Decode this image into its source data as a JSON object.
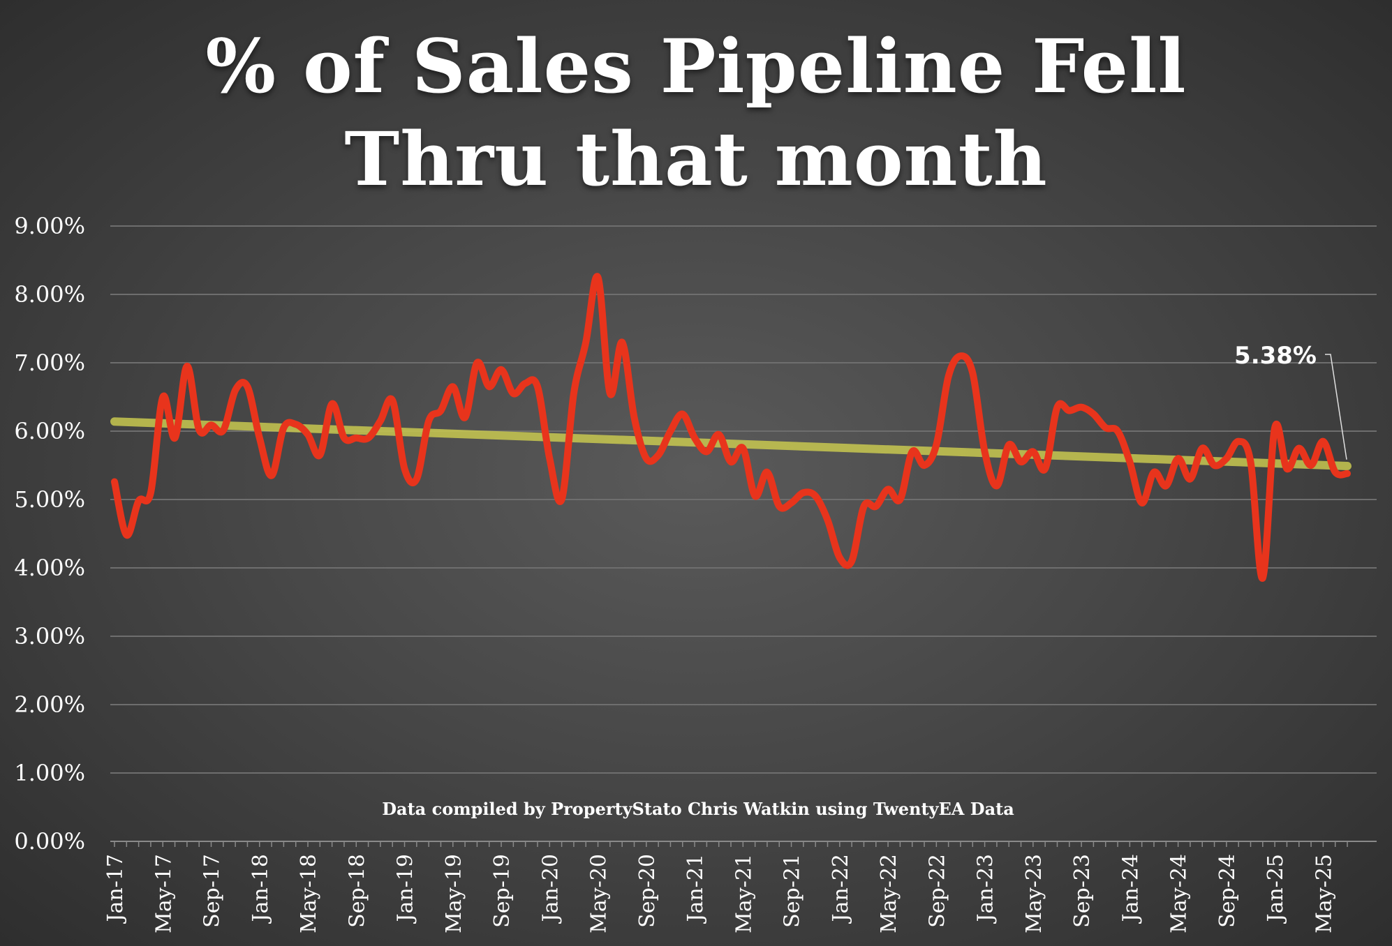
{
  "chart_data": {
    "type": "line",
    "title": "% of Sales Pipeline Fell Thru that month",
    "title_lines": [
      "% of Sales Pipeline Fell",
      "Thru that month"
    ],
    "note": "Data compiled by PropertyStato Chris Watkin using TwentyEA Data",
    "ylim": [
      0,
      0.09
    ],
    "y_ticks": [
      "0.00%",
      "1.00%",
      "2.00%",
      "3.00%",
      "4.00%",
      "5.00%",
      "6.00%",
      "7.00%",
      "8.00%",
      "9.00%"
    ],
    "x_tick_labels": [
      "Jan-17",
      "May-17",
      "Sep-17",
      "Jan-18",
      "May-18",
      "Sep-18",
      "Jan-19",
      "May-19",
      "Sep-19",
      "Jan-20",
      "May-20",
      "Sep-20",
      "Jan-21",
      "May-21",
      "Sep-21",
      "Jan-22",
      "May-22",
      "Sep-22",
      "Jan-23",
      "May-23",
      "Sep-23",
      "Jan-24",
      "May-24",
      "Sep-24",
      "Jan-25",
      "May-25"
    ],
    "x_start": "Jan-17",
    "x_end": "Jul-25",
    "grid": true,
    "series": [
      {
        "color": "#e8341c",
        "values": [
          0.0526,
          0.0448,
          0.0498,
          0.051,
          0.065,
          0.059,
          0.0695,
          0.0602,
          0.0609,
          0.0601,
          0.066,
          0.0665,
          0.059,
          0.0535,
          0.0605,
          0.061,
          0.0595,
          0.0565,
          0.064,
          0.059,
          0.059,
          0.059,
          0.0615,
          0.0645,
          0.0545,
          0.053,
          0.0615,
          0.063,
          0.0665,
          0.062,
          0.07,
          0.0665,
          0.069,
          0.0655,
          0.067,
          0.0665,
          0.056,
          0.05,
          0.0655,
          0.073,
          0.0825,
          0.0655,
          0.073,
          0.062,
          0.056,
          0.0565,
          0.06,
          0.0625,
          0.059,
          0.057,
          0.0595,
          0.0555,
          0.0575,
          0.0505,
          0.054,
          0.049,
          0.0495,
          0.051,
          0.0505,
          0.047,
          0.0415,
          0.041,
          0.049,
          0.049,
          0.0515,
          0.05,
          0.057,
          0.055,
          0.058,
          0.068,
          0.071,
          0.0685,
          0.057,
          0.052,
          0.058,
          0.0555,
          0.057,
          0.0545,
          0.0635,
          0.063,
          0.0635,
          0.0625,
          0.0605,
          0.06,
          0.0555,
          0.0495,
          0.054,
          0.052,
          0.056,
          0.053,
          0.0575,
          0.055,
          0.056,
          0.0585,
          0.0555,
          0.0385,
          0.0605,
          0.0545,
          0.0575,
          0.055,
          0.0585,
          0.054,
          0.0538
        ]
      },
      {
        "color": "#c8c850",
        "type": "trendline",
        "values": [
          0.0614,
          0.0549
        ]
      }
    ],
    "annotation": {
      "label": "5.38%",
      "value": 0.0538,
      "month": "Jul-25"
    }
  }
}
